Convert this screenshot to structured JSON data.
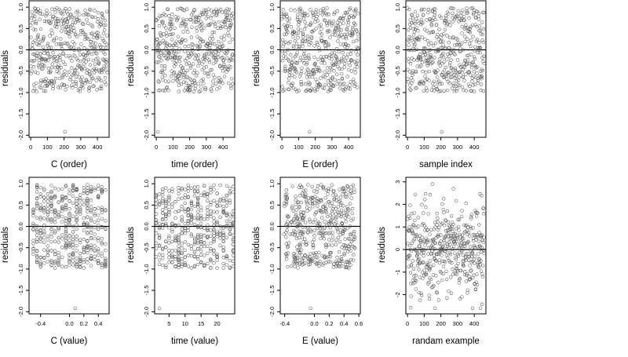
{
  "chart_data": [
    {
      "type": "scatter",
      "xlabel": "C (order)",
      "ylabel": "residuals",
      "xlim": [
        -10,
        470
      ],
      "ylim": [
        -2.05,
        1.15
      ],
      "x_ticks": [
        0,
        100,
        200,
        300,
        400
      ],
      "x_tick_labels": [
        "0",
        "100",
        "200",
        "300",
        "400"
      ],
      "y_ticks": [
        1.0,
        0.5,
        0.0,
        -0.5,
        -1.0,
        -1.5,
        -2.0
      ],
      "y_tick_labels": [
        "1.0",
        "0.5",
        "0.0",
        "-0.5",
        "-1.0",
        "-1.5",
        "-2.0"
      ],
      "hline": 0,
      "n_points": 460,
      "x_range": [
        0,
        459
      ],
      "outliers": [
        [
          205,
          -1.92
        ]
      ]
    },
    {
      "type": "scatter",
      "xlabel": "time (order)",
      "ylabel": "residuals",
      "xlim": [
        -10,
        470
      ],
      "ylim": [
        -2.05,
        1.15
      ],
      "x_ticks": [
        0,
        100,
        200,
        300,
        400
      ],
      "x_tick_labels": [
        "0",
        "100",
        "200",
        "300",
        "400"
      ],
      "y_ticks": [
        1.0,
        0.5,
        0.0,
        -0.5,
        -1.0,
        -1.5,
        -2.0
      ],
      "y_tick_labels": [
        "1.0",
        "0.5",
        "0.0",
        "-0.5",
        "-1.0",
        "-1.5",
        "-2.0"
      ],
      "hline": 0,
      "n_points": 460,
      "x_range": [
        0,
        459
      ],
      "outliers": [
        [
          10,
          -1.92
        ]
      ]
    },
    {
      "type": "scatter",
      "xlabel": "E (order)",
      "ylabel": "residuals",
      "xlim": [
        -10,
        470
      ],
      "ylim": [
        -2.05,
        1.15
      ],
      "x_ticks": [
        0,
        100,
        200,
        300,
        400
      ],
      "x_tick_labels": [
        "0",
        "100",
        "200",
        "300",
        "400"
      ],
      "y_ticks": [
        1.0,
        0.5,
        0.0,
        -0.5,
        -1.0,
        -1.5,
        -2.0
      ],
      "y_tick_labels": [
        "1.0",
        "0.5",
        "0.0",
        "-0.5",
        "-1.0",
        "-1.5",
        "-2.0"
      ],
      "hline": 0,
      "n_points": 460,
      "x_range": [
        0,
        459
      ],
      "outliers": [
        [
          165,
          -1.92
        ]
      ]
    },
    {
      "type": "scatter",
      "xlabel": "sample index",
      "ylabel": "residuals",
      "xlim": [
        -10,
        470
      ],
      "ylim": [
        -2.05,
        1.15
      ],
      "x_ticks": [
        0,
        100,
        200,
        300,
        400
      ],
      "x_tick_labels": [
        "0",
        "100",
        "200",
        "300",
        "400"
      ],
      "y_ticks": [
        1.0,
        0.5,
        0.0,
        -0.5,
        -1.0,
        -1.5,
        -2.0
      ],
      "y_tick_labels": [
        "1.0",
        "0.5",
        "0.0",
        "-0.5",
        "-1.0",
        "-1.5",
        "-2.0"
      ],
      "hline": 0,
      "n_points": 460,
      "x_range": [
        0,
        459
      ],
      "outliers": [
        [
          205,
          -1.92
        ]
      ]
    },
    {
      "type": "scatter",
      "xlabel": "C (value)",
      "ylabel": "residuals",
      "xlim": [
        -0.56,
        0.55
      ],
      "ylim": [
        -2.05,
        1.15
      ],
      "x_ticks": [
        -0.4,
        0.0,
        0.2,
        0.4
      ],
      "x_tick_labels": [
        "-0.4",
        "0.0",
        "0.2",
        "0.4"
      ],
      "y_ticks": [
        1.0,
        0.5,
        0.0,
        -0.5,
        -1.0,
        -1.5,
        -2.0
      ],
      "y_tick_labels": [
        "1.0",
        "0.5",
        "0.0",
        "-0.5",
        "-1.0",
        "-1.5",
        "-2.0"
      ],
      "hline": 0,
      "n_points": 460,
      "x_range": [
        -0.52,
        0.52
      ],
      "outliers": [
        [
          0.08,
          -1.92
        ]
      ]
    },
    {
      "type": "scatter",
      "xlabel": "time (value)",
      "ylabel": "residuals",
      "xlim": [
        0.5,
        25.5
      ],
      "ylim": [
        -2.05,
        1.15
      ],
      "x_ticks": [
        5,
        10,
        15,
        20
      ],
      "x_tick_labels": [
        "5",
        "10",
        "15",
        "20"
      ],
      "y_ticks": [
        1.0,
        0.5,
        0.0,
        -0.5,
        -1.0,
        -1.5,
        -2.0
      ],
      "y_tick_labels": [
        "1.0",
        "0.5",
        "0.0",
        "-0.5",
        "-1.0",
        "-1.5",
        "-2.0"
      ],
      "hline": 0,
      "n_points": 460,
      "x_range": [
        1,
        25
      ],
      "outliers": [
        [
          2,
          -1.92
        ]
      ]
    },
    {
      "type": "scatter",
      "xlabel": "E (value)",
      "ylabel": "residuals",
      "xlim": [
        -0.46,
        0.62
      ],
      "ylim": [
        -2.05,
        1.15
      ],
      "x_ticks": [
        -0.4,
        0.0,
        0.2,
        0.4,
        0.6
      ],
      "x_tick_labels": [
        "-0.4",
        "0.0",
        "0.2",
        "0.4",
        "0.6"
      ],
      "y_ticks": [
        1.0,
        0.5,
        0.0,
        -0.5,
        -1.0,
        -1.5,
        -2.0
      ],
      "y_tick_labels": [
        "1.0",
        "0.5",
        "0.0",
        "-0.5",
        "-1.0",
        "-1.5",
        "-2.0"
      ],
      "hline": 0,
      "n_points": 460,
      "x_range": [
        -0.42,
        0.55
      ],
      "outliers": [
        [
          -0.05,
          -1.92
        ]
      ]
    },
    {
      "type": "scatter",
      "xlabel": "randam example",
      "ylabel": "residuals",
      "xlim": [
        -10,
        470
      ],
      "ylim": [
        -2.85,
        3.2
      ],
      "x_ticks": [
        0,
        100,
        200,
        300,
        400
      ],
      "x_tick_labels": [
        "0",
        "100",
        "200",
        "300",
        "400"
      ],
      "y_ticks": [
        3,
        2,
        1,
        0,
        -1,
        -2
      ],
      "y_tick_labels": [
        "3",
        "2",
        "1",
        "0",
        "-1",
        "-2"
      ],
      "hline": 0,
      "n_points": 460,
      "x_range": [
        0,
        459
      ],
      "outliers": []
    }
  ]
}
